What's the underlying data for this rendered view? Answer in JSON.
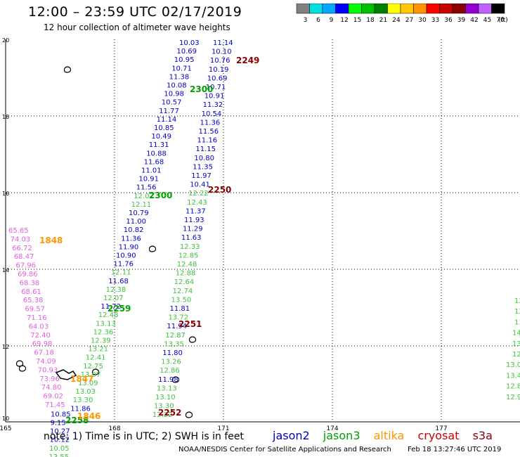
{
  "title": "12:00 – 23:59 UTC 02/17/2019",
  "subtitle": "12 hour collection of altimeter wave heights",
  "scale": {
    "colors": [
      "#808080",
      "#00e0e0",
      "#00a8ff",
      "#0000ff",
      "#00ff00",
      "#00c000",
      "#008000",
      "#ffff00",
      "#ffc800",
      "#ff9600",
      "#ff0000",
      "#c80000",
      "#8b0000",
      "#9400d3",
      "#c060ff",
      "#000000"
    ],
    "labels": [
      "3",
      "6",
      "9",
      "12",
      "15",
      "18",
      "21",
      "24",
      "27",
      "30",
      "33",
      "36",
      "39",
      "42",
      "45",
      "70",
      "(ft)"
    ]
  },
  "axes": {
    "x_ticks": [
      "165",
      "168",
      "171",
      "174",
      "177"
    ],
    "y_ticks": [
      "20",
      "18",
      "16",
      "14",
      "12",
      "10"
    ]
  },
  "colors": {
    "jason2": "#0000c8",
    "jason3": "#00a000",
    "altika": "#ff9600",
    "cryosat": "#c80000",
    "s3a": "#8b0000",
    "pink": "#e060e0",
    "green_light": "#40c040"
  },
  "tracks": {
    "track_a": {
      "values": [
        "10.03",
        "10.69",
        "10.95",
        "10.71",
        "11.38",
        "10.08",
        "10.98",
        "10.57",
        "11.77",
        "11.14",
        "10.85",
        "10.49",
        "11.31",
        "10.88",
        "11.68",
        "11.01",
        "10.91",
        "11.56",
        "12.07",
        "12.11",
        "10.79",
        "11.00",
        "10.82",
        "11.36",
        "11.90",
        "10.90",
        "11.76",
        "12.11",
        "11.68",
        "12.38",
        "12.07",
        "11.72",
        "12.48",
        "13.13",
        "12.36",
        "12.39",
        "13.21",
        "12.41",
        "12.75",
        "13.07",
        "13.09",
        "13.03",
        "13.30",
        "11.86",
        "10.85",
        "9.15",
        "10.27",
        "10.12",
        "10.05",
        "13.55",
        "10.77"
      ],
      "time": "2300",
      "time2": "2259",
      "time3": "2258"
    },
    "track_b": {
      "values": [
        "11.14",
        "10.10",
        "10.76",
        "10.19",
        "10.69",
        "10.71",
        "10.91",
        "11.32",
        "10.54",
        "11.36",
        "11.56",
        "11.16",
        "11.15",
        "10.80",
        "11.35",
        "11.97",
        "10.41",
        "12.22",
        "12.43",
        "11.37",
        "11.93",
        "11.29",
        "11.63",
        "12.33",
        "12.85",
        "12.48",
        "12.88",
        "12.64",
        "12.74",
        "13.50",
        "11.81",
        "13.72",
        "11.94",
        "12.87",
        "13.35",
        "11.80",
        "13.26",
        "12.86",
        "11.98",
        "13.13",
        "13.10",
        "13.30",
        "12.22"
      ],
      "time_a": "2249",
      "time_b": "2300",
      "time_c": "2250",
      "time_d": "2251",
      "time_e": "2252"
    },
    "track_c": {
      "values": [
        "65.65",
        "74.03",
        "66.72",
        "68.47",
        "67.96",
        "69.86",
        "68.38",
        "68.61",
        "65.38",
        "69.57",
        "71.16",
        "64.03",
        "72.40",
        "69.98",
        "67.18",
        "74.09",
        "70.93",
        "73.96",
        "74.80",
        "69.02",
        "71.45"
      ],
      "time1": "1848",
      "time2": "1847",
      "time3": "1846"
    },
    "track_d": {
      "values": [
        "12.",
        "12.",
        "13.",
        "14.",
        "13.",
        "12.",
        "13.0",
        "13.4",
        "12.8",
        "12.9"
      ]
    }
  },
  "footer": {
    "note": "note:  1) Time is in UTC;  2) SWH is in feet",
    "sat_jason2": "jason2",
    "sat_jason3": "jason3",
    "sat_altika": "altika",
    "sat_cryosat": "cryosat",
    "sat_s3a": "s3a",
    "credit": "NOAA/NESDIS Center for Satellite Applications and Research",
    "timestamp": "Feb 18 13:27:46 UTC 2019"
  }
}
